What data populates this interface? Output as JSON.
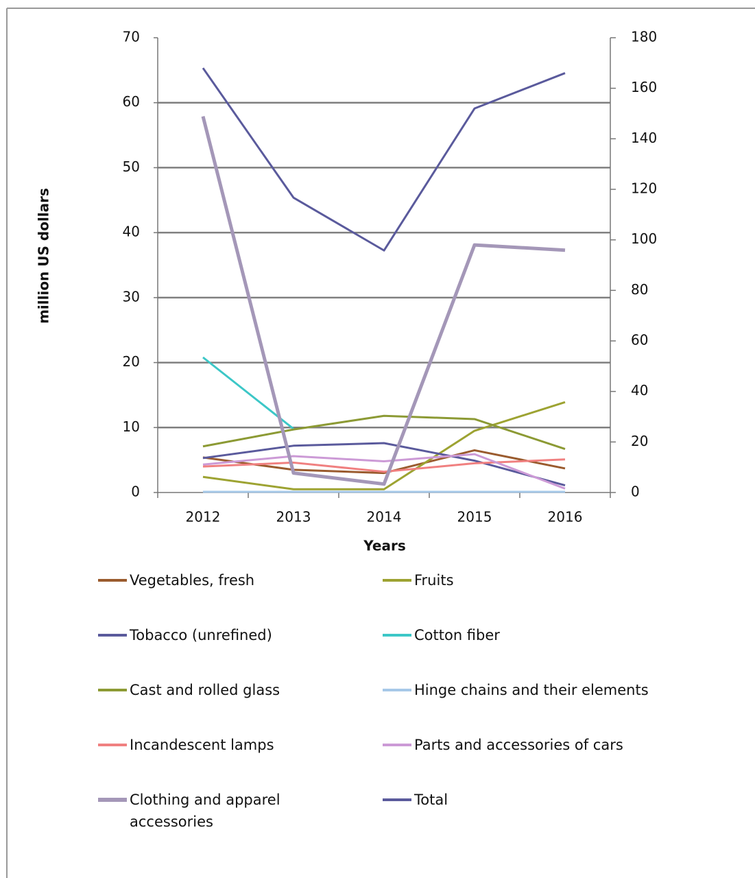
{
  "chart_data": {
    "type": "line",
    "x_label": "Years",
    "y_label": "million US dollars",
    "categories": [
      "2012",
      "2013",
      "2014",
      "2015",
      "2016"
    ],
    "ylim": [
      0,
      70
    ],
    "yticks": [
      0,
      10,
      20,
      30,
      40,
      50,
      60,
      70
    ],
    "y2lim": [
      0,
      180
    ],
    "y2ticks": [
      0,
      20,
      40,
      60,
      80,
      100,
      120,
      140,
      160,
      180
    ],
    "grid": true,
    "legend": "bottom",
    "series": [
      {
        "name": "Vegetables, fresh",
        "color": "#9a5b2e",
        "values": [
          5.4,
          3.5,
          3.0,
          6.5,
          3.7
        ]
      },
      {
        "name": "Fruits",
        "color": "#9da332",
        "values": [
          2.4,
          0.5,
          0.5,
          9.5,
          13.9
        ]
      },
      {
        "name": "Tobacco (unrefined)",
        "color": "#5a5a9c",
        "values": [
          5.3,
          7.2,
          7.6,
          4.9,
          1.1
        ]
      },
      {
        "name": "Cotton fiber",
        "color": "#3cc7c7",
        "values": [
          20.8,
          9.8,
          null,
          null,
          null
        ]
      },
      {
        "name": "Cast and rolled glass",
        "color": "#8c9a34",
        "values": [
          7.1,
          9.7,
          11.8,
          11.3,
          6.7
        ]
      },
      {
        "name": "Hinge chains and their elements",
        "color": "#a6c8e8",
        "values": [
          0.1,
          0.1,
          0.1,
          0.1,
          0.1
        ]
      },
      {
        "name": "Incandescent lamps",
        "color": "#f08080",
        "values": [
          4.0,
          4.6,
          3.2,
          4.5,
          5.1
        ]
      },
      {
        "name": "Parts and accessories of cars",
        "color": "#cc9ad6",
        "values": [
          4.3,
          5.6,
          4.8,
          5.9,
          0.6
        ]
      },
      {
        "name": "Clothing and apparel accessories",
        "color": "#a497b8",
        "width": 5,
        "values": [
          57.9,
          3.0,
          1.3,
          38.1,
          37.3
        ]
      },
      {
        "name": "Total",
        "color": "#5a5a9c",
        "axis": "y2",
        "values": [
          168,
          116.7,
          95.8,
          152,
          166
        ]
      }
    ]
  }
}
